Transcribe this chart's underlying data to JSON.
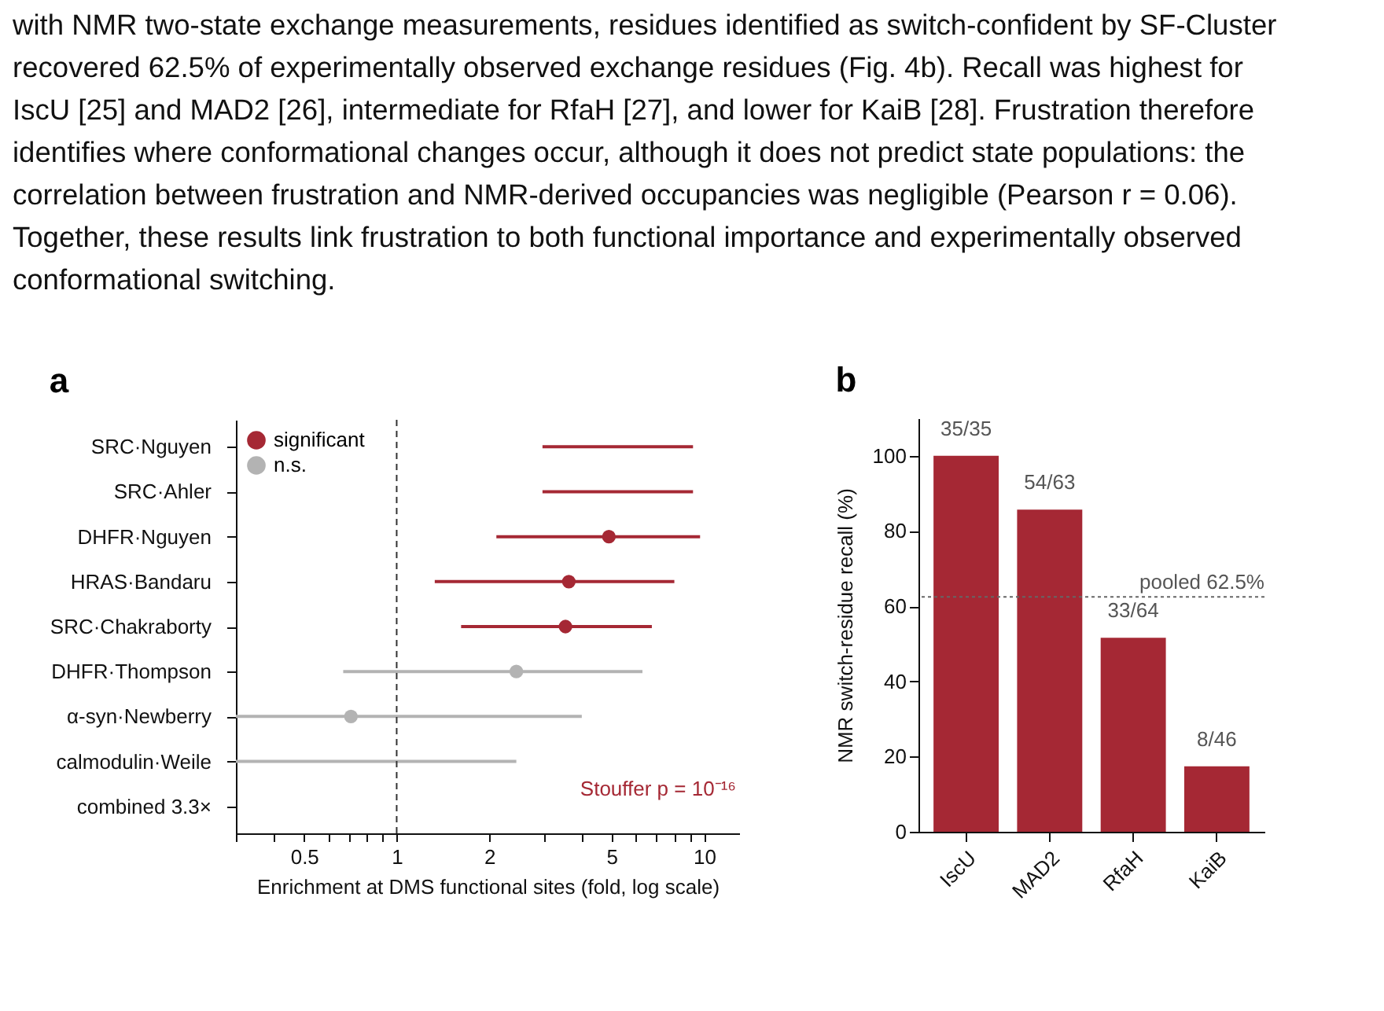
{
  "chart_data": [
    {
      "type": "other",
      "annotations": [
        "with NMR two-state exchange measurements, residues identified as switch-confident by SF-Cluster",
        "recovered 62.5% of experimentally observed exchange residues (Fig. 4b). Recall was highest for",
        "IscU [25] and MAD2 [26], intermediate for RfaH [27], and lower for KaiB [28]. Frustration therefore",
        "identifies where conformational changes occur, although it does not predict state populations: the",
        "correlation between frustration and NMR-derived occupancies was negligible (Pearson r = 0.06).",
        "Together, these results link frustration to both functional importance and experimentally observed",
        "conformational switching."
      ]
    },
    {
      "type": "scatter",
      "title": "a",
      "xlabel": "Enrichment at DMS functional sites (fold, log scale)",
      "orientation": "horizontal",
      "log": "x",
      "grid": false,
      "legend": "top left",
      "marker": "circle",
      "categories": [
        "SRC·Nguyen",
        "SRC·Ahler",
        "DHFR·Nguyen",
        "HRAS·Bandaru",
        "SRC·Chakraborty",
        "DHFR·Thompson",
        "α-syn·Newberry",
        "calmodulin·Weile",
        "combined 3.3×"
      ],
      "xlim": [
        0.3,
        13
      ],
      "xticks": [
        {
          "value": 0.3,
          "label": null
        },
        {
          "value": 0.4,
          "label": null
        },
        0.5,
        {
          "value": 0.6,
          "label": null
        },
        {
          "value": 0.7,
          "label": null
        },
        {
          "value": 0.8,
          "label": null
        },
        {
          "value": 0.9,
          "label": null
        },
        1,
        2,
        {
          "value": 3,
          "label": null
        },
        {
          "value": 4,
          "label": null
        },
        5,
        {
          "value": 6,
          "label": null
        },
        {
          "value": 7,
          "label": null
        },
        {
          "value": 8,
          "label": null
        },
        {
          "value": 9,
          "label": null
        },
        10
      ],
      "ref_lines": [
        {
          "axis": "x",
          "value": 1,
          "line_style": "dashed"
        }
      ],
      "annotations": [
        "Stouffer p = 10⁻¹⁶"
      ],
      "series": [
        {
          "type": "bar",
          "base": [
            2.98,
            2.98,
            2.11,
            1.33,
            1.62,
            0.67,
            0.3,
            0.3,
            null
          ],
          "values": [
            6.22,
            6.22,
            7.59,
            6.67,
            5.14,
            5.63,
            3.7,
            2.15,
            null
          ],
          "colors": [
            "#a52834",
            "#a52834",
            "#a52834",
            "#a52834",
            "#a52834",
            "#b3b3b3",
            "#b3b3b3",
            "#b3b3b3",
            null
          ]
        },
        {
          "name": "significant",
          "color": "#a52834",
          "values": [
            null,
            null,
            4.9,
            3.63,
            3.54,
            null,
            null,
            null,
            null
          ]
        },
        {
          "name": "n.s.",
          "color": "#b3b3b3",
          "values": [
            null,
            null,
            null,
            null,
            null,
            2.45,
            0.71,
            null,
            null
          ]
        }
      ]
    },
    {
      "type": "bar",
      "title": "b",
      "ylabel": "NMR switch-residue recall (%)",
      "grid": false,
      "categories": [
        "IscU",
        "MAD2",
        "RfaH",
        "KaiB"
      ],
      "ylim": [
        0,
        110
      ],
      "yticks": [
        0,
        20,
        40,
        60,
        80,
        100
      ],
      "ref_lines": [
        {
          "axis": "y",
          "value": 62.5,
          "label": "pooled 62.5%",
          "line_style": "dotted"
        }
      ],
      "series": [
        {
          "color": "#a52834",
          "values": [
            100,
            85.7,
            51.6,
            17.4
          ],
          "value_labels": [
            "35/35",
            "54/63",
            "33/64",
            "8/46"
          ]
        }
      ]
    }
  ]
}
